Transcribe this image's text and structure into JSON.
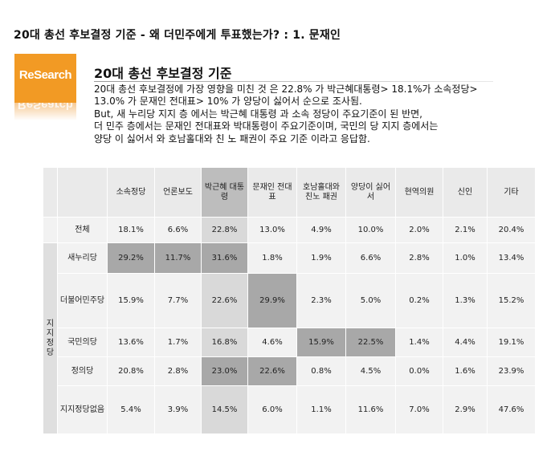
{
  "page": {
    "title": "20대 총선 후보결정 기준 - 왜 더민주에게 투표했는가? : 1. 문재인"
  },
  "logo": {
    "text": "ReSearch"
  },
  "section": {
    "heading": "20대 총선 후보결정 기준",
    "summary_lines": [
      "20대 총선 후보결정에 가장 영향을 미친 것 은  22.8% 가 박근혜대통령> 18.1%가 소속정당>",
      "13.0% 가 문재인 전대표> 10% 가 양당이 싫어서 순으로 조사됨.",
      "But, 새 누리당 지지 층 에서는 박근혜 대통령 과 소속 정당이 주요기준이 된 반면,",
      "더 민주 층에서는 문재인 전대표와 박대통령이 주요기준이며, 국민의 당 지지 층에서는",
      "양당 이 싫어서 와 호남홀대와 친 노 패권이 주요 기준 이라고 응답함."
    ]
  },
  "table": {
    "group_label": "지지정당",
    "columns": [
      "소속정당",
      "언론보도",
      "박근혜 대통령",
      "문재인 전대표",
      "호남홀대와 친노 패권",
      "양당이 싫어서",
      "현역의원",
      "신인",
      "기타"
    ],
    "rows": [
      {
        "label": "전체",
        "values": [
          "18.1%",
          "6.6%",
          "22.8%",
          "13.0%",
          "4.9%",
          "10.0%",
          "2.0%",
          "2.1%",
          "20.4%"
        ]
      },
      {
        "label": "새누리당",
        "values": [
          "29.2%",
          "11.7%",
          "31.6%",
          "1.8%",
          "1.9%",
          "6.6%",
          "2.8%",
          "1.0%",
          "13.4%"
        ]
      },
      {
        "label": "더불어민주당",
        "values": [
          "15.9%",
          "7.7%",
          "22.6%",
          "29.9%",
          "2.3%",
          "5.0%",
          "0.2%",
          "1.3%",
          "15.2%"
        ]
      },
      {
        "label": "국민의당",
        "values": [
          "13.6%",
          "1.7%",
          "16.8%",
          "4.6%",
          "15.9%",
          "22.5%",
          "1.4%",
          "4.4%",
          "19.1%"
        ]
      },
      {
        "label": "정의당",
        "values": [
          "20.8%",
          "2.8%",
          "23.0%",
          "22.6%",
          "0.8%",
          "4.5%",
          "0.0%",
          "1.6%",
          "23.9%"
        ]
      },
      {
        "label": "지지정당없음",
        "values": [
          "5.4%",
          "3.9%",
          "14.5%",
          "6.0%",
          "1.1%",
          "11.6%",
          "7.0%",
          "2.9%",
          "47.6%"
        ]
      }
    ],
    "highlight_cells": [
      [
        1,
        0
      ],
      [
        1,
        1
      ],
      [
        1,
        2
      ],
      [
        2,
        3
      ],
      [
        3,
        4
      ],
      [
        3,
        5
      ],
      [
        4,
        2
      ],
      [
        4,
        3
      ]
    ],
    "highlight_color": "#a8a8a8",
    "column_highlight_color": "#d9d9d9"
  }
}
